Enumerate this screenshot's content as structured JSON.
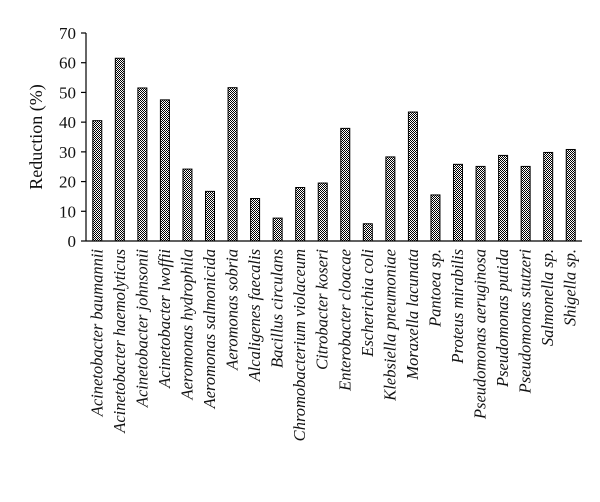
{
  "chart_data": {
    "type": "bar",
    "ylabel": "Reduction (%)",
    "ylim": [
      0,
      70
    ],
    "yticks": [
      "0",
      "10",
      "20",
      "30",
      "40",
      "50",
      "60",
      "70"
    ],
    "grid": false,
    "legend": "none",
    "bar_fill": "checkered",
    "bar_color": "#000000",
    "categories": [
      "Acinetobacter baumannii",
      "Acinetobacter haemolyticus",
      "Acinetobacter johnsonii",
      "Acinetobacter lwoffii",
      "Aeromonas hydrophila",
      "Aeromonas salmonicida",
      "Aeromonas sobria",
      "Alcaligenes faecalis",
      "Bacillus circulans",
      "Chromobacterium violaceum",
      "Citrobacter koseri",
      "Enterobacter cloacae",
      "Escherichia coli",
      "Klebsiella pneumoniae",
      "Moraxella lacunata",
      "Pantoea sp.",
      "Proteus mirabilis",
      "Pseudomonas aeruginosa",
      "Pseudomonas putida",
      "Pseudomonas stutzeri",
      "Salmonella sp.",
      "Shigella sp."
    ],
    "values": [
      40.5,
      61.5,
      51.5,
      47.5,
      24.2,
      16.7,
      51.6,
      14.3,
      7.7,
      18,
      19.5,
      37.9,
      5.8,
      28.3,
      43.4,
      15.5,
      25.8,
      25.1,
      28.8,
      25.1,
      29.8,
      30.8
    ]
  }
}
